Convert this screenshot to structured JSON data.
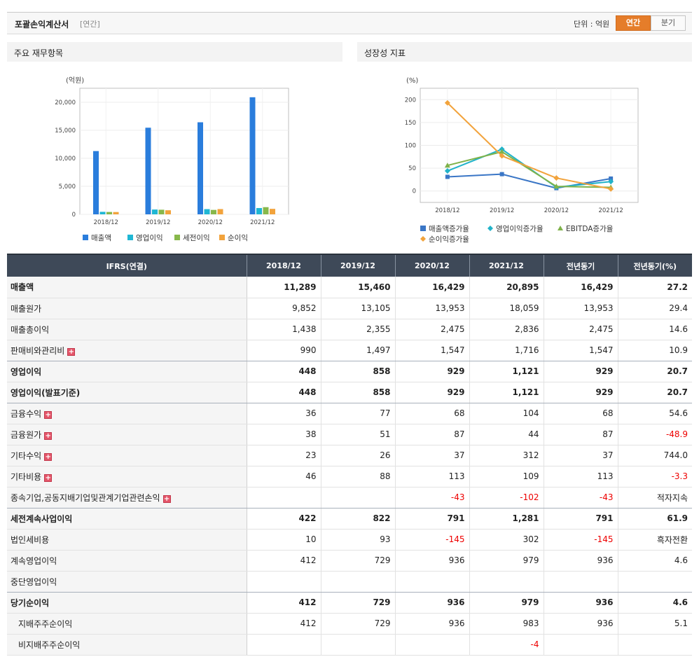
{
  "header": {
    "title": "포괄손익계산서",
    "period_tag": "[연간]",
    "unit": "단위 : 억원",
    "toggle_annual": "연간",
    "toggle_quarter": "분기"
  },
  "panels": {
    "left_title": "주요 재무항목",
    "right_title": "성장성 지표"
  },
  "colors": {
    "accent": "#e57d2a",
    "header_bg": "#3e4958",
    "negative": "#ee0000"
  },
  "chart_data": [
    {
      "type": "bar",
      "unit_label": "(억원)",
      "categories": [
        "2018/12",
        "2019/12",
        "2020/12",
        "2021/12"
      ],
      "ylim": [
        0,
        22500
      ],
      "yticks": [
        0,
        5000,
        10000,
        15000,
        20000
      ],
      "ytick_labels": [
        "0",
        "5,000",
        "10,000",
        "15,000",
        "20,000"
      ],
      "grid": true,
      "legend": "bottom",
      "series": [
        {
          "name": "매출액",
          "color": "#2a7ddc",
          "values": [
            11289,
            15460,
            16429,
            20895
          ]
        },
        {
          "name": "영업이익",
          "color": "#1fb7d4",
          "values": [
            448,
            858,
            929,
            1121
          ]
        },
        {
          "name": "세전이익",
          "color": "#88b84b",
          "values": [
            422,
            822,
            791,
            1281
          ]
        },
        {
          "name": "순이익",
          "color": "#f2a33c",
          "values": [
            412,
            729,
            936,
            979
          ]
        }
      ]
    },
    {
      "type": "line",
      "unit_label": "(%)",
      "categories": [
        "2018/12",
        "2019/12",
        "2020/12",
        "2021/12"
      ],
      "ylim": [
        -25,
        225
      ],
      "yticks": [
        0,
        50,
        100,
        150,
        200
      ],
      "ytick_labels": [
        "0",
        "50",
        "100",
        "150",
        "200"
      ],
      "grid": true,
      "legend": "bottom",
      "series": [
        {
          "name": "매출액증가율",
          "color": "#3a76c6",
          "marker": "square",
          "values": [
            31,
            36.9,
            6.3,
            27.2
          ]
        },
        {
          "name": "영업이익증가율",
          "color": "#22b3c9",
          "marker": "diamond",
          "values": [
            44,
            91.5,
            8.3,
            20.7
          ]
        },
        {
          "name": "EBITDA증가율",
          "color": "#7fb24a",
          "marker": "triangle",
          "values": [
            56,
            86,
            10,
            8
          ]
        },
        {
          "name": "순이익증가율",
          "color": "#f2a33c",
          "marker": "diamond",
          "values": [
            193,
            77,
            28.4,
            4.6
          ]
        }
      ]
    }
  ],
  "table": {
    "columns": [
      "IFRS(연결)",
      "2018/12",
      "2019/12",
      "2020/12",
      "2021/12",
      "전년동기",
      "전년동기(%)"
    ],
    "rows": [
      {
        "label": "매출액",
        "values": [
          "11,289",
          "15,460",
          "16,429",
          "20,895",
          "16,429",
          "27.2"
        ]
      },
      {
        "label": "매출원가",
        "values": [
          "9,852",
          "13,105",
          "13,953",
          "18,059",
          "13,953",
          "29.4"
        ]
      },
      {
        "label": "매출총이익",
        "values": [
          "1,438",
          "2,355",
          "2,475",
          "2,836",
          "2,475",
          "14.6"
        ]
      },
      {
        "label": "판매비와관리비",
        "values": [
          "990",
          "1,497",
          "1,547",
          "1,716",
          "1,547",
          "10.9"
        ]
      },
      {
        "label": "영업이익",
        "values": [
          "448",
          "858",
          "929",
          "1,121",
          "929",
          "20.7"
        ]
      },
      {
        "label": "영업이익(발표기준)",
        "values": [
          "448",
          "858",
          "929",
          "1,121",
          "929",
          "20.7"
        ]
      },
      {
        "label": "금융수익",
        "values": [
          "36",
          "77",
          "68",
          "104",
          "68",
          "54.6"
        ]
      },
      {
        "label": "금융원가",
        "values": [
          "38",
          "51",
          "87",
          "44",
          "87",
          "-48.9"
        ]
      },
      {
        "label": "기타수익",
        "values": [
          "23",
          "26",
          "37",
          "312",
          "37",
          "744.0"
        ]
      },
      {
        "label": "기타비용",
        "values": [
          "46",
          "88",
          "113",
          "109",
          "113",
          "-3.3"
        ]
      },
      {
        "label": "종속기업,공동지배기업및관계기업관련손익",
        "values": [
          "",
          "",
          "-43",
          "-102",
          "-43",
          "적자지속"
        ]
      },
      {
        "label": "세전계속사업이익",
        "values": [
          "422",
          "822",
          "791",
          "1,281",
          "791",
          "61.9"
        ]
      },
      {
        "label": "법인세비용",
        "values": [
          "10",
          "93",
          "-145",
          "302",
          "-145",
          "흑자전환"
        ]
      },
      {
        "label": "계속영업이익",
        "values": [
          "412",
          "729",
          "936",
          "979",
          "936",
          "4.6"
        ]
      },
      {
        "label": "중단영업이익",
        "values": [
          "",
          "",
          "",
          "",
          "",
          ""
        ]
      },
      {
        "label": "당기순이익",
        "values": [
          "412",
          "729",
          "936",
          "979",
          "936",
          "4.6"
        ]
      },
      {
        "label": "지배주주순이익",
        "values": [
          "412",
          "729",
          "936",
          "983",
          "936",
          "5.1"
        ]
      },
      {
        "label": "비지배주주순이익",
        "values": [
          "",
          "",
          "",
          "-4",
          "",
          ""
        ]
      }
    ]
  }
}
